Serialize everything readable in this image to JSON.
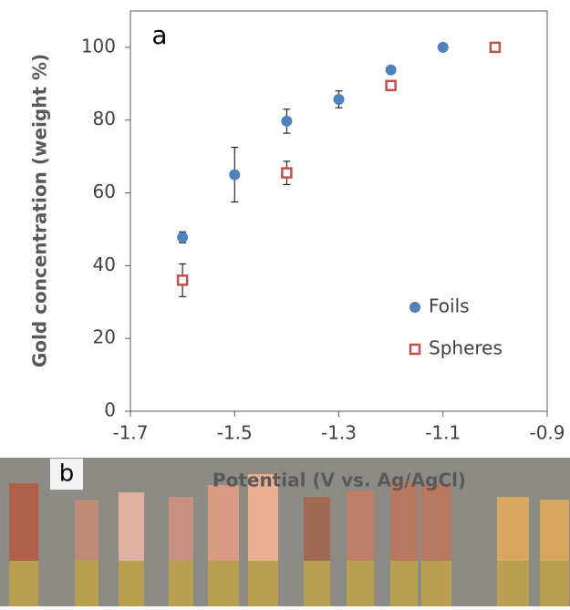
{
  "chart_data": {
    "type": "scatter",
    "panel_label": "a",
    "xlabel": "Potential (V vs. Ag/AgCl)",
    "ylabel": "Gold concentration (weight %)",
    "xlim": [
      -1.7,
      -0.9
    ],
    "xticks": [
      -1.7,
      -1.5,
      -1.3,
      -1.1,
      -0.9
    ],
    "ylim": [
      0,
      110
    ],
    "yticks": [
      0,
      20,
      40,
      60,
      80,
      100
    ],
    "legend": "right",
    "series": [
      {
        "name": "Foils",
        "color": "#4f81bd",
        "marker": "circle",
        "x": [
          -1.6,
          -1.5,
          -1.4,
          -1.3,
          -1.2,
          -1.1
        ],
        "values": [
          47.8,
          65,
          79.7,
          85.7,
          93.8,
          100
        ],
        "errors": [
          1.5,
          7.5,
          3.3,
          2.3,
          null,
          null
        ]
      },
      {
        "name": "Spheres",
        "color": "#c0504d",
        "marker": "square",
        "x": [
          -1.6,
          -1.4,
          -1.2,
          -1.0
        ],
        "values": [
          36,
          65.5,
          89.5,
          100
        ],
        "errors": [
          4.5,
          3.2,
          null,
          null
        ]
      }
    ]
  },
  "photo": {
    "label": "b"
  }
}
